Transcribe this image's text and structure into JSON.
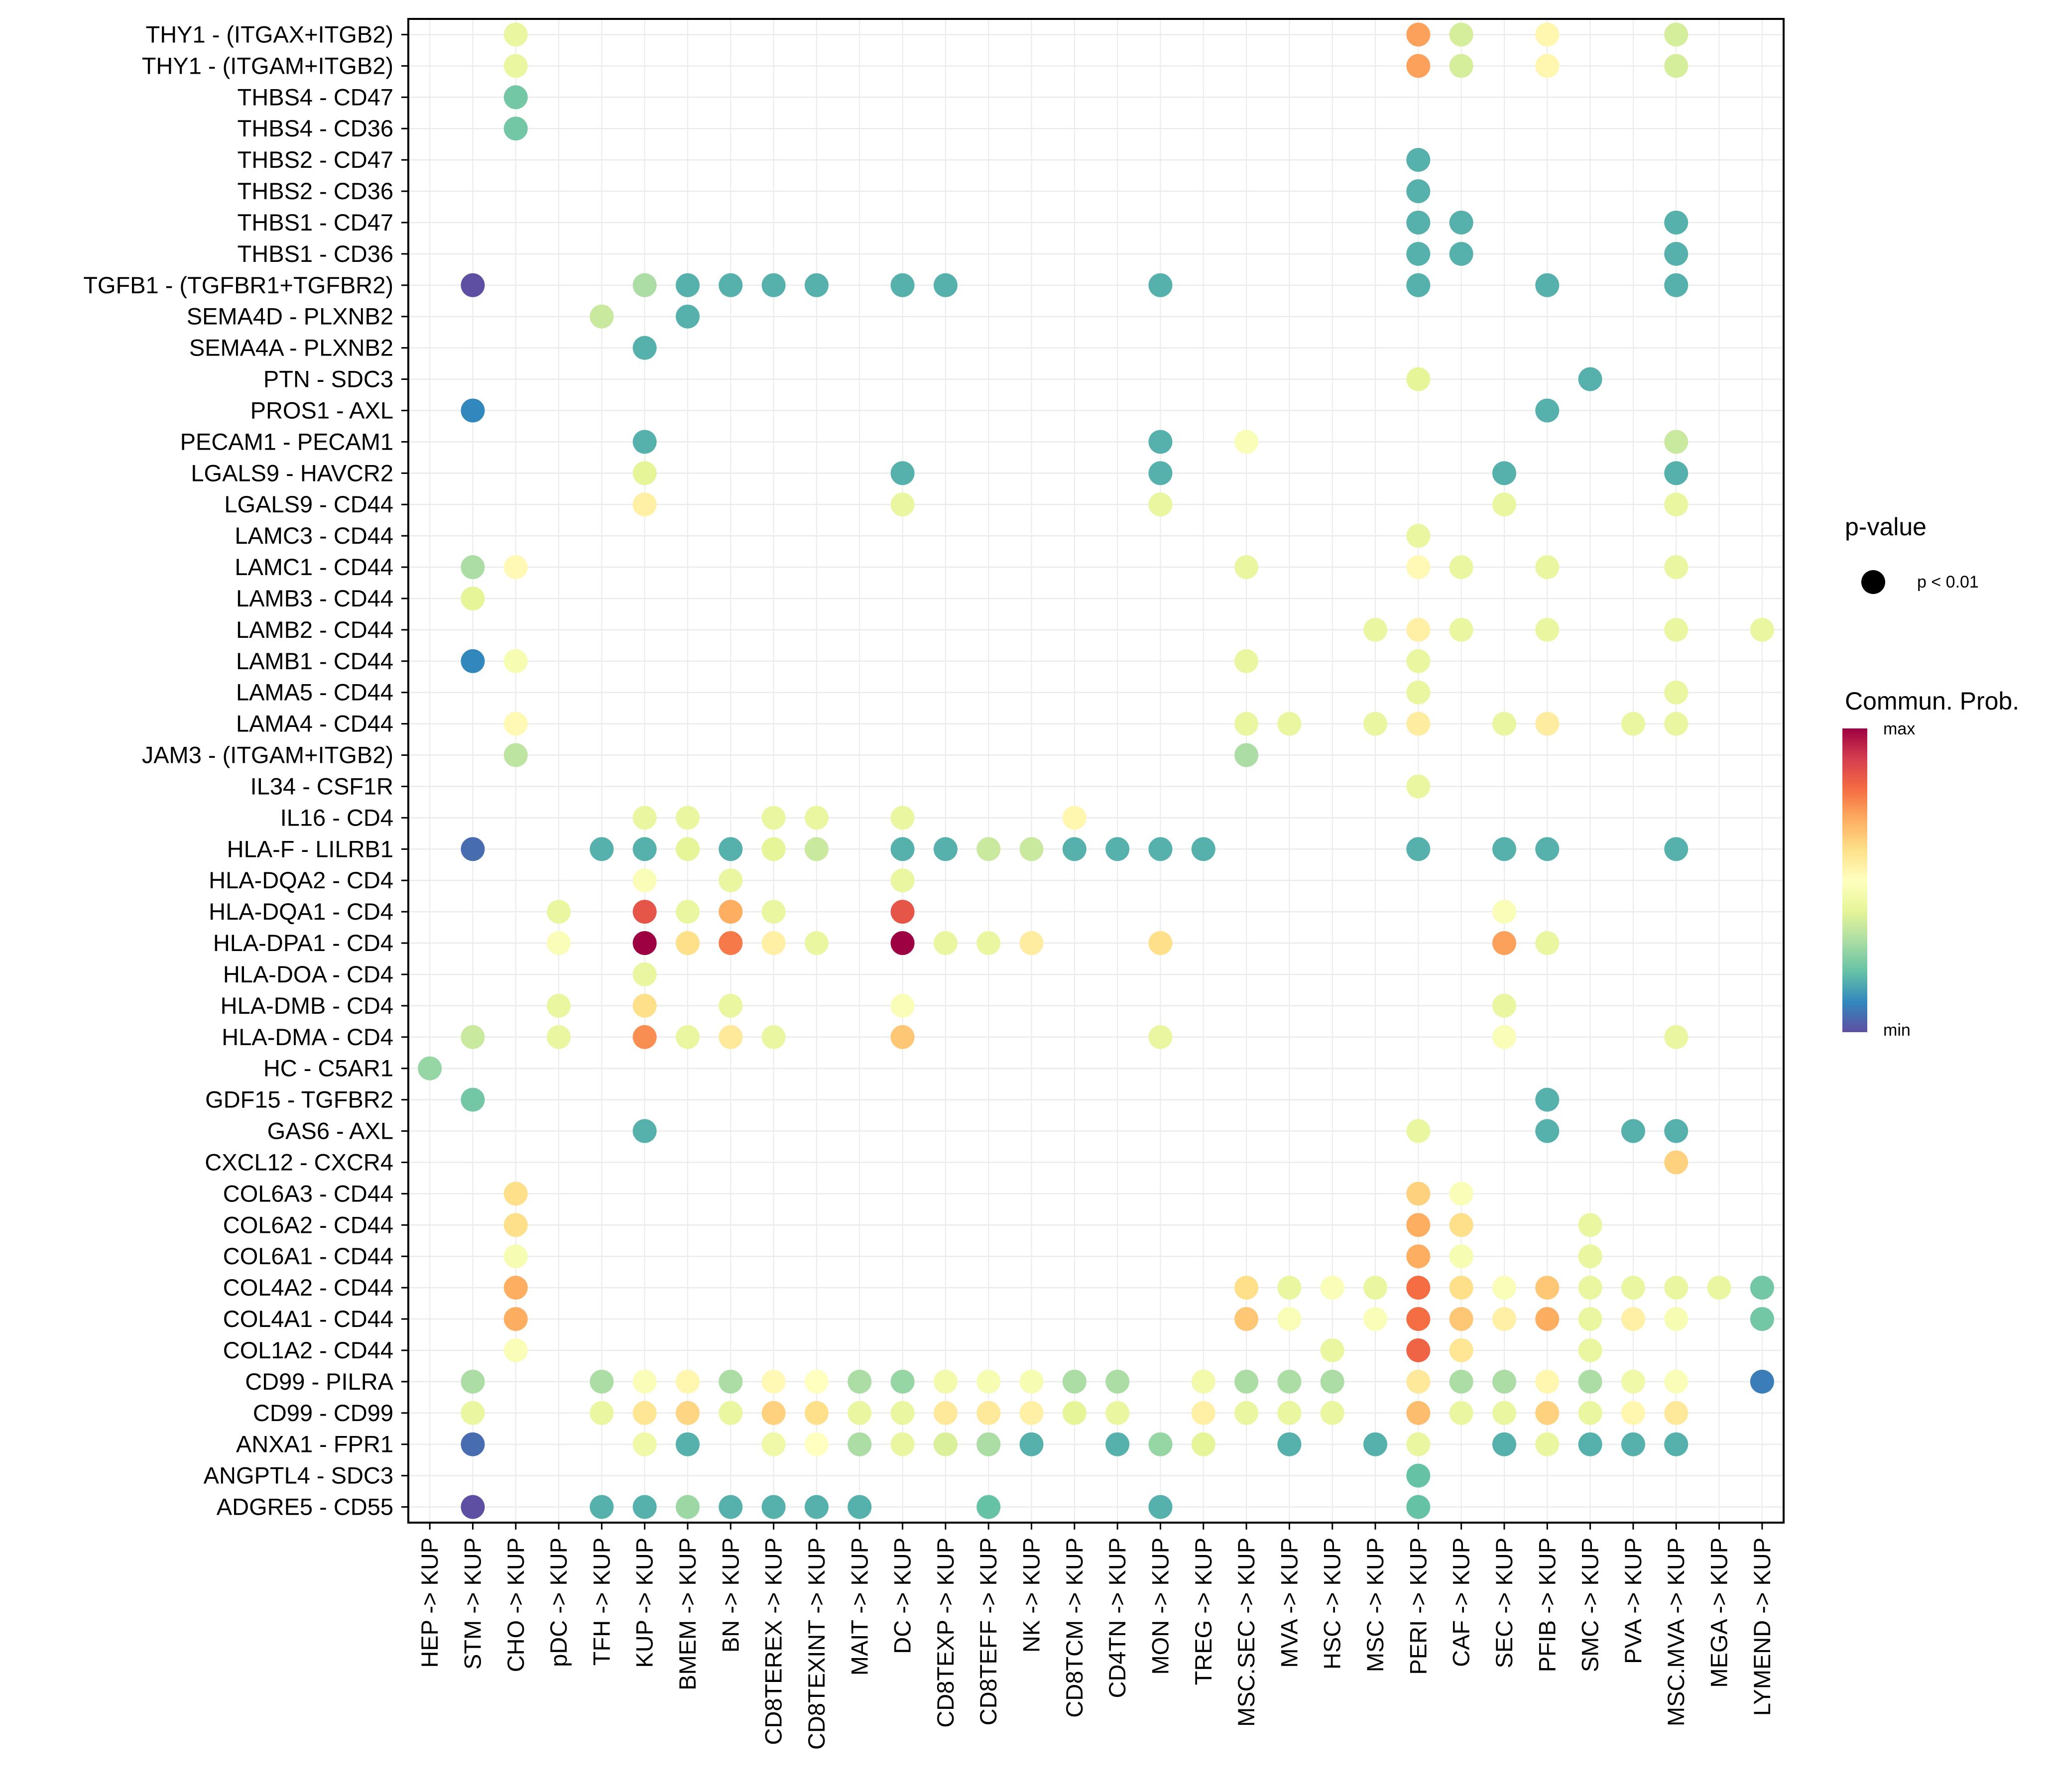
{
  "chart_data": {
    "type": "scatter",
    "subtype": "dot-matrix",
    "title": "",
    "xlabel": "",
    "ylabel": "",
    "grid": true,
    "x_categories": [
      "HEP -> KUP",
      "STM -> KUP",
      "CHO -> KUP",
      "pDC -> KUP",
      "TFH -> KUP",
      "KUP -> KUP",
      "BMEM -> KUP",
      "BN -> KUP",
      "CD8TEREX -> KUP",
      "CD8TEXINT -> KUP",
      "MAIT -> KUP",
      "DC -> KUP",
      "CD8TEXP -> KUP",
      "CD8TEFF -> KUP",
      "NK -> KUP",
      "CD8TCM -> KUP",
      "CD4TN -> KUP",
      "MON -> KUP",
      "TREG -> KUP",
      "MSC.SEC -> KUP",
      "MVA -> KUP",
      "HSC -> KUP",
      "MSC -> KUP",
      "PERI -> KUP",
      "CAF -> KUP",
      "SEC -> KUP",
      "PFIB -> KUP",
      "SMC -> KUP",
      "PVA -> KUP",
      "MSC.MVA -> KUP",
      "MEGA -> KUP",
      "LYMEND -> KUP"
    ],
    "y_categories": [
      "THY1 - (ITGAX+ITGB2)",
      "THY1 - (ITGAM+ITGB2)",
      "THBS4 - CD47",
      "THBS4 - CD36",
      "THBS2 - CD47",
      "THBS2 - CD36",
      "THBS1 - CD47",
      "THBS1 - CD36",
      "TGFB1 - (TGFBR1+TGFBR2)",
      "SEMA4D - PLXNB2",
      "SEMA4A - PLXNB2",
      "PTN - SDC3",
      "PROS1 - AXL",
      "PECAM1 - PECAM1",
      "LGALS9 - HAVCR2",
      "LGALS9 - CD44",
      "LAMC3 - CD44",
      "LAMC1 - CD44",
      "LAMB3 - CD44",
      "LAMB2 - CD44",
      "LAMB1 - CD44",
      "LAMA5 - CD44",
      "LAMA4 - CD44",
      "JAM3 - (ITGAM+ITGB2)",
      "IL34 - CSF1R",
      "IL16 - CD4",
      "HLA-F - LILRB1",
      "HLA-DQA2 - CD4",
      "HLA-DQA1 - CD4",
      "HLA-DPA1 - CD4",
      "HLA-DOA - CD4",
      "HLA-DMB - CD4",
      "HLA-DMA - CD4",
      "HC - C5AR1",
      "GDF15 - TGFBR2",
      "GAS6 - AXL",
      "CXCL12 - CXCR4",
      "COL6A3 - CD44",
      "COL6A2 - CD44",
      "COL6A1 - CD44",
      "COL4A2 - CD44",
      "COL4A1 - CD44",
      "COL1A2 - CD44",
      "CD99 - PILRA",
      "CD99 - CD99",
      "ANXA1 - FPR1",
      "ANGPTL4 - SDC3",
      "ADGRE5 - CD55"
    ],
    "value_scale": "relative communication probability, 0 = min, 1 = max",
    "points": [
      {
        "y": "THY1 - (ITGAX+ITGB2)",
        "values": {
          "CHO -> KUP": 0.42,
          "PERI -> KUP": 0.72,
          "CAF -> KUP": 0.37,
          "PFIB -> KUP": 0.53,
          "MSC.MVA -> KUP": 0.37
        }
      },
      {
        "y": "THY1 - (ITGAM+ITGB2)",
        "values": {
          "CHO -> KUP": 0.42,
          "PERI -> KUP": 0.72,
          "CAF -> KUP": 0.37,
          "PFIB -> KUP": 0.53,
          "MSC.MVA -> KUP": 0.37
        }
      },
      {
        "y": "THBS4 - CD47",
        "values": {
          "CHO -> KUP": 0.22
        }
      },
      {
        "y": "THBS4 - CD36",
        "values": {
          "CHO -> KUP": 0.22
        }
      },
      {
        "y": "THBS2 - CD47",
        "values": {
          "PERI -> KUP": 0.17
        }
      },
      {
        "y": "THBS2 - CD36",
        "values": {
          "PERI -> KUP": 0.17
        }
      },
      {
        "y": "THBS1 - CD47",
        "values": {
          "PERI -> KUP": 0.17,
          "CAF -> KUP": 0.17,
          "MSC.MVA -> KUP": 0.17
        }
      },
      {
        "y": "THBS1 - CD36",
        "values": {
          "PERI -> KUP": 0.17,
          "CAF -> KUP": 0.17,
          "MSC.MVA -> KUP": 0.17
        }
      },
      {
        "y": "TGFB1 - (TGFBR1+TGFBR2)",
        "values": {
          "STM -> KUP": 0.0,
          "KUP -> KUP": 0.3,
          "BMEM -> KUP": 0.17,
          "BN -> KUP": 0.17,
          "CD8TEREX -> KUP": 0.17,
          "CD8TEXINT -> KUP": 0.17,
          "DC -> KUP": 0.17,
          "CD8TEXP -> KUP": 0.17,
          "MON -> KUP": 0.17,
          "PERI -> KUP": 0.17,
          "PFIB -> KUP": 0.17,
          "MSC.MVA -> KUP": 0.17
        }
      },
      {
        "y": "SEMA4D - PLXNB2",
        "values": {
          "TFH -> KUP": 0.35,
          "BMEM -> KUP": 0.17
        }
      },
      {
        "y": "SEMA4A - PLXNB2",
        "values": {
          "KUP -> KUP": 0.17
        }
      },
      {
        "y": "PTN - SDC3",
        "values": {
          "PERI -> KUP": 0.4,
          "SMC -> KUP": 0.17
        }
      },
      {
        "y": "PROS1 - AXL",
        "values": {
          "STM -> KUP": 0.1,
          "PFIB -> KUP": 0.17
        }
      },
      {
        "y": "PECAM1 - PECAM1",
        "values": {
          "KUP -> KUP": 0.17,
          "MON -> KUP": 0.17,
          "MSC.SEC -> KUP": 0.48,
          "MSC.MVA -> KUP": 0.35
        }
      },
      {
        "y": "LGALS9 - HAVCR2",
        "values": {
          "KUP -> KUP": 0.4,
          "DC -> KUP": 0.17,
          "MON -> KUP": 0.17,
          "SEC -> KUP": 0.17,
          "MSC.MVA -> KUP": 0.17
        }
      },
      {
        "y": "LGALS9 - CD44",
        "values": {
          "KUP -> KUP": 0.55,
          "DC -> KUP": 0.42,
          "MON -> KUP": 0.42,
          "SEC -> KUP": 0.42,
          "MSC.MVA -> KUP": 0.42
        }
      },
      {
        "y": "LAMC3 - CD44",
        "values": {
          "PERI -> KUP": 0.42
        }
      },
      {
        "y": "LAMC1 - CD44",
        "values": {
          "STM -> KUP": 0.3,
          "CHO -> KUP": 0.52,
          "MSC.SEC -> KUP": 0.42,
          "PERI -> KUP": 0.52,
          "CAF -> KUP": 0.42,
          "PFIB -> KUP": 0.42,
          "MSC.MVA -> KUP": 0.42
        }
      },
      {
        "y": "LAMB3 - CD44",
        "values": {
          "STM -> KUP": 0.4
        }
      },
      {
        "y": "LAMB2 - CD44",
        "values": {
          "MSC -> KUP": 0.42,
          "PERI -> KUP": 0.55,
          "CAF -> KUP": 0.42,
          "PFIB -> KUP": 0.42,
          "MSC.MVA -> KUP": 0.42,
          "LYMEND -> KUP": 0.42
        }
      },
      {
        "y": "LAMB1 - CD44",
        "values": {
          "STM -> KUP": 0.1,
          "CHO -> KUP": 0.47,
          "MSC.SEC -> KUP": 0.42,
          "PERI -> KUP": 0.42
        }
      },
      {
        "y": "LAMA5 - CD44",
        "values": {
          "PERI -> KUP": 0.42,
          "MSC.MVA -> KUP": 0.42
        }
      },
      {
        "y": "LAMA4 - CD44",
        "values": {
          "CHO -> KUP": 0.52,
          "MSC.SEC -> KUP": 0.42,
          "MVA -> KUP": 0.42,
          "MSC -> KUP": 0.42,
          "PERI -> KUP": 0.56,
          "SEC -> KUP": 0.42,
          "PFIB -> KUP": 0.56,
          "PVA -> KUP": 0.42,
          "MSC.MVA -> KUP": 0.42
        }
      },
      {
        "y": "JAM3 - (ITGAM+ITGB2)",
        "values": {
          "CHO -> KUP": 0.33,
          "MSC.SEC -> KUP": 0.3
        }
      },
      {
        "y": "IL34 - CSF1R",
        "values": {
          "PERI -> KUP": 0.42
        }
      },
      {
        "y": "IL16 - CD4",
        "values": {
          "KUP -> KUP": 0.42,
          "BMEM -> KUP": 0.42,
          "CD8TEREX -> KUP": 0.42,
          "CD8TEXINT -> KUP": 0.42,
          "DC -> KUP": 0.42,
          "CD8TCM -> KUP": 0.53
        }
      },
      {
        "y": "HLA-F - LILRB1",
        "values": {
          "STM -> KUP": 0.05,
          "TFH -> KUP": 0.17,
          "KUP -> KUP": 0.17,
          "BMEM -> KUP": 0.4,
          "BN -> KUP": 0.17,
          "CD8TEREX -> KUP": 0.4,
          "CD8TEXINT -> KUP": 0.35,
          "DC -> KUP": 0.17,
          "CD8TEXP -> KUP": 0.17,
          "CD8TEFF -> KUP": 0.35,
          "NK -> KUP": 0.35,
          "CD8TCM -> KUP": 0.17,
          "CD4TN -> KUP": 0.17,
          "MON -> KUP": 0.17,
          "TREG -> KUP": 0.17,
          "PERI -> KUP": 0.17,
          "SEC -> KUP": 0.17,
          "PFIB -> KUP": 0.17,
          "MSC.MVA -> KUP": 0.17
        }
      },
      {
        "y": "HLA-DQA2 - CD4",
        "values": {
          "KUP -> KUP": 0.48,
          "BN -> KUP": 0.42,
          "DC -> KUP": 0.42
        }
      },
      {
        "y": "HLA-DQA1 - CD4",
        "values": {
          "pDC -> KUP": 0.42,
          "KUP -> KUP": 0.85,
          "BMEM -> KUP": 0.42,
          "BN -> KUP": 0.7,
          "CD8TEREX -> KUP": 0.42,
          "DC -> KUP": 0.85,
          "SEC -> KUP": 0.48
        }
      },
      {
        "y": "HLA-DPA1 - CD4",
        "values": {
          "pDC -> KUP": 0.48,
          "KUP -> KUP": 1.0,
          "BMEM -> KUP": 0.6,
          "BN -> KUP": 0.78,
          "CD8TEREX -> KUP": 0.55,
          "CD8TEXINT -> KUP": 0.42,
          "DC -> KUP": 1.0,
          "CD8TEXP -> KUP": 0.42,
          "CD8TEFF -> KUP": 0.42,
          "NK -> KUP": 0.56,
          "MON -> KUP": 0.6,
          "SEC -> KUP": 0.72,
          "PFIB -> KUP": 0.42
        }
      },
      {
        "y": "HLA-DOA - CD4",
        "values": {
          "KUP -> KUP": 0.42
        }
      },
      {
        "y": "HLA-DMB - CD4",
        "values": {
          "pDC -> KUP": 0.42,
          "KUP -> KUP": 0.6,
          "BN -> KUP": 0.42,
          "DC -> KUP": 0.48,
          "SEC -> KUP": 0.42
        }
      },
      {
        "y": "HLA-DMA - CD4",
        "values": {
          "STM -> KUP": 0.35,
          "pDC -> KUP": 0.42,
          "KUP -> KUP": 0.75,
          "BMEM -> KUP": 0.42,
          "BN -> KUP": 0.57,
          "CD8TEREX -> KUP": 0.42,
          "DC -> KUP": 0.65,
          "MON -> KUP": 0.42,
          "SEC -> KUP": 0.48,
          "MSC.MVA -> KUP": 0.42
        }
      },
      {
        "y": "HC - C5AR1",
        "values": {
          "HEP -> KUP": 0.27
        }
      },
      {
        "y": "GDF15 - TGFBR2",
        "values": {
          "STM -> KUP": 0.22,
          "PFIB -> KUP": 0.17
        }
      },
      {
        "y": "GAS6 - AXL",
        "values": {
          "KUP -> KUP": 0.17,
          "PERI -> KUP": 0.42,
          "PFIB -> KUP": 0.17,
          "PVA -> KUP": 0.17,
          "MSC.MVA -> KUP": 0.17
        }
      },
      {
        "y": "CXCL12 - CXCR4",
        "values": {
          "MSC.MVA -> KUP": 0.63
        }
      },
      {
        "y": "COL6A3 - CD44",
        "values": {
          "CHO -> KUP": 0.6,
          "PERI -> KUP": 0.63,
          "CAF -> KUP": 0.48
        }
      },
      {
        "y": "COL6A2 - CD44",
        "values": {
          "CHO -> KUP": 0.6,
          "PERI -> KUP": 0.7,
          "CAF -> KUP": 0.6,
          "SMC -> KUP": 0.42
        }
      },
      {
        "y": "COL6A1 - CD44",
        "values": {
          "CHO -> KUP": 0.47,
          "PERI -> KUP": 0.7,
          "CAF -> KUP": 0.47,
          "SMC -> KUP": 0.42
        }
      },
      {
        "y": "COL4A2 - CD44",
        "values": {
          "CHO -> KUP": 0.7,
          "MSC.SEC -> KUP": 0.6,
          "MVA -> KUP": 0.42,
          "HSC -> KUP": 0.48,
          "MSC -> KUP": 0.42,
          "PERI -> KUP": 0.8,
          "CAF -> KUP": 0.6,
          "SEC -> KUP": 0.48,
          "PFIB -> KUP": 0.65,
          "SMC -> KUP": 0.42,
          "PVA -> KUP": 0.42,
          "MSC.MVA -> KUP": 0.42,
          "MEGA -> KUP": 0.42,
          "LYMEND -> KUP": 0.22
        }
      },
      {
        "y": "COL4A1 - CD44",
        "values": {
          "CHO -> KUP": 0.7,
          "MSC.SEC -> KUP": 0.65,
          "MVA -> KUP": 0.48,
          "MSC -> KUP": 0.48,
          "PERI -> KUP": 0.8,
          "CAF -> KUP": 0.65,
          "SEC -> KUP": 0.55,
          "PFIB -> KUP": 0.7,
          "SMC -> KUP": 0.42,
          "PVA -> KUP": 0.55,
          "MSC.MVA -> KUP": 0.47,
          "LYMEND -> KUP": 0.22
        }
      },
      {
        "y": "COL1A2 - CD44",
        "values": {
          "CHO -> KUP": 0.48,
          "HSC -> KUP": 0.42,
          "PERI -> KUP": 0.82,
          "CAF -> KUP": 0.58,
          "SMC -> KUP": 0.42
        }
      },
      {
        "y": "CD99 - PILRA",
        "values": {
          "STM -> KUP": 0.3,
          "TFH -> KUP": 0.3,
          "KUP -> KUP": 0.48,
          "BMEM -> KUP": 0.53,
          "BN -> KUP": 0.3,
          "CD8TEREX -> KUP": 0.52,
          "CD8TEXINT -> KUP": 0.5,
          "MAIT -> KUP": 0.3,
          "DC -> KUP": 0.27,
          "CD8TEXP -> KUP": 0.45,
          "CD8TEFF -> KUP": 0.47,
          "NK -> KUP": 0.47,
          "CD8TCM -> KUP": 0.3,
          "CD4TN -> KUP": 0.3,
          "TREG -> KUP": 0.45,
          "MSC.SEC -> KUP": 0.3,
          "MVA -> KUP": 0.3,
          "HSC -> KUP": 0.3,
          "PERI -> KUP": 0.57,
          "CAF -> KUP": 0.3,
          "SEC -> KUP": 0.3,
          "PFIB -> KUP": 0.53,
          "SMC -> KUP": 0.3,
          "PVA -> KUP": 0.44,
          "MSC.MVA -> KUP": 0.48,
          "LYMEND -> KUP": 0.08
        }
      },
      {
        "y": "CD99 - CD99",
        "values": {
          "STM -> KUP": 0.42,
          "TFH -> KUP": 0.42,
          "KUP -> KUP": 0.58,
          "BMEM -> KUP": 0.62,
          "BN -> KUP": 0.42,
          "CD8TEREX -> KUP": 0.63,
          "CD8TEXINT -> KUP": 0.6,
          "MAIT -> KUP": 0.42,
          "DC -> KUP": 0.42,
          "CD8TEXP -> KUP": 0.57,
          "CD8TEFF -> KUP": 0.57,
          "NK -> KUP": 0.55,
          "CD8TCM -> KUP": 0.4,
          "CD4TN -> KUP": 0.42,
          "TREG -> KUP": 0.55,
          "MSC.SEC -> KUP": 0.42,
          "MVA -> KUP": 0.42,
          "HSC -> KUP": 0.42,
          "PERI -> KUP": 0.67,
          "CAF -> KUP": 0.42,
          "SEC -> KUP": 0.42,
          "PFIB -> KUP": 0.63,
          "SMC -> KUP": 0.42,
          "PVA -> KUP": 0.53,
          "MSC.MVA -> KUP": 0.57
        }
      },
      {
        "y": "ANXA1 - FPR1",
        "values": {
          "STM -> KUP": 0.05,
          "KUP -> KUP": 0.44,
          "BMEM -> KUP": 0.17,
          "CD8TEREX -> KUP": 0.44,
          "CD8TEXINT -> KUP": 0.5,
          "MAIT -> KUP": 0.3,
          "DC -> KUP": 0.42,
          "CD8TEXP -> KUP": 0.38,
          "CD8TEFF -> KUP": 0.3,
          "NK -> KUP": 0.17,
          "CD4TN -> KUP": 0.17,
          "MON -> KUP": 0.27,
          "TREG -> KUP": 0.4,
          "MVA -> KUP": 0.17,
          "MSC -> KUP": 0.17,
          "PERI -> KUP": 0.42,
          "SEC -> KUP": 0.17,
          "PFIB -> KUP": 0.42,
          "SMC -> KUP": 0.17,
          "PVA -> KUP": 0.17,
          "MSC.MVA -> KUP": 0.17
        }
      },
      {
        "y": "ANGPTL4 - SDC3",
        "values": {
          "PERI -> KUP": 0.2
        }
      },
      {
        "y": "ADGRE5 - CD55",
        "values": {
          "STM -> KUP": 0.0,
          "TFH -> KUP": 0.17,
          "KUP -> KUP": 0.17,
          "BMEM -> KUP": 0.28,
          "BN -> KUP": 0.17,
          "CD8TEREX -> KUP": 0.17,
          "CD8TEXINT -> KUP": 0.17,
          "MAIT -> KUP": 0.17,
          "CD8TEFF -> KUP": 0.2,
          "MON -> KUP": 0.17,
          "PERI -> KUP": 0.2
        }
      }
    ],
    "legend": {
      "pvalue": {
        "title": "p-value",
        "items": [
          {
            "label": "p < 0.01",
            "color": "#000000"
          }
        ]
      },
      "colorbar": {
        "title": "Commun. Prob.",
        "max_label": "max",
        "min_label": "min",
        "palette": [
          "#5E4FA2",
          "#3288BD",
          "#66C2A5",
          "#ABDDA4",
          "#E6F598",
          "#FFFFBF",
          "#FEE08B",
          "#FDAE61",
          "#F46D43",
          "#D53E4F",
          "#9E0142"
        ]
      },
      "placement": "right"
    }
  }
}
